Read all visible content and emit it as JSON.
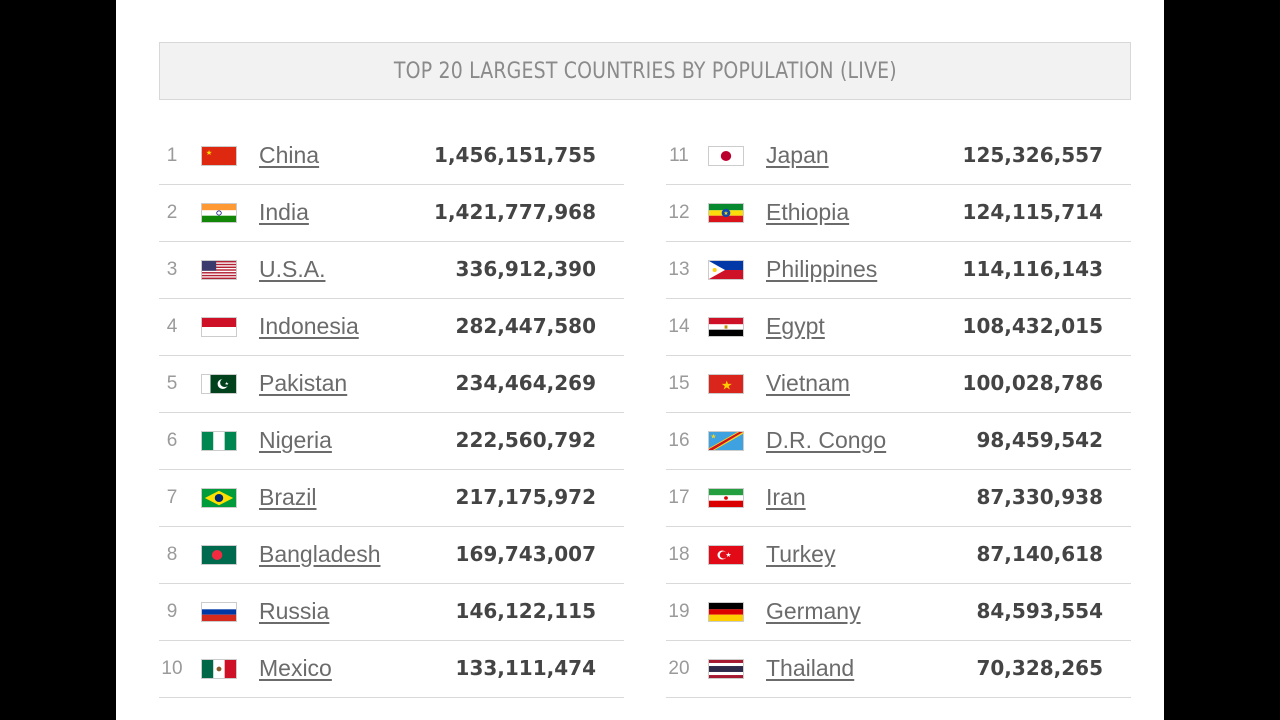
{
  "title": "TOP 20 LARGEST COUNTRIES BY POPULATION (LIVE)",
  "left_column": [
    {
      "rank": "1",
      "name": "China",
      "population": "1,456,151,755",
      "flag": "china-flag-icon"
    },
    {
      "rank": "2",
      "name": "India",
      "population": "1,421,777,968",
      "flag": "india-flag-icon"
    },
    {
      "rank": "3",
      "name": "U.S.A.",
      "population": "336,912,390",
      "flag": "usa-flag-icon"
    },
    {
      "rank": "4",
      "name": "Indonesia",
      "population": "282,447,580",
      "flag": "indonesia-flag-icon"
    },
    {
      "rank": "5",
      "name": "Pakistan",
      "population": "234,464,269",
      "flag": "pakistan-flag-icon"
    },
    {
      "rank": "6",
      "name": "Nigeria",
      "population": "222,560,792",
      "flag": "nigeria-flag-icon"
    },
    {
      "rank": "7",
      "name": "Brazil",
      "population": "217,175,972",
      "flag": "brazil-flag-icon"
    },
    {
      "rank": "8",
      "name": "Bangladesh",
      "population": "169,743,007",
      "flag": "bangladesh-flag-icon"
    },
    {
      "rank": "9",
      "name": "Russia",
      "population": "146,122,115",
      "flag": "russia-flag-icon"
    },
    {
      "rank": "10",
      "name": "Mexico",
      "population": "133,111,474",
      "flag": "mexico-flag-icon"
    }
  ],
  "right_column": [
    {
      "rank": "11",
      "name": "Japan",
      "population": "125,326,557",
      "flag": "japan-flag-icon"
    },
    {
      "rank": "12",
      "name": "Ethiopia",
      "population": "124,115,714",
      "flag": "ethiopia-flag-icon"
    },
    {
      "rank": "13",
      "name": "Philippines",
      "population": "114,116,143",
      "flag": "philippines-flag-icon"
    },
    {
      "rank": "14",
      "name": "Egypt",
      "population": "108,432,015",
      "flag": "egypt-flag-icon"
    },
    {
      "rank": "15",
      "name": "Vietnam",
      "population": "100,028,786",
      "flag": "vietnam-flag-icon"
    },
    {
      "rank": "16",
      "name": "D.R. Congo",
      "population": "98,459,542",
      "flag": "dr-congo-flag-icon"
    },
    {
      "rank": "17",
      "name": "Iran",
      "population": "87,330,938",
      "flag": "iran-flag-icon"
    },
    {
      "rank": "18",
      "name": "Turkey",
      "population": "87,140,618",
      "flag": "turkey-flag-icon"
    },
    {
      "rank": "19",
      "name": "Germany",
      "population": "84,593,554",
      "flag": "germany-flag-icon"
    },
    {
      "rank": "20",
      "name": "Thailand",
      "population": "70,328,265",
      "flag": "thailand-flag-icon"
    }
  ]
}
